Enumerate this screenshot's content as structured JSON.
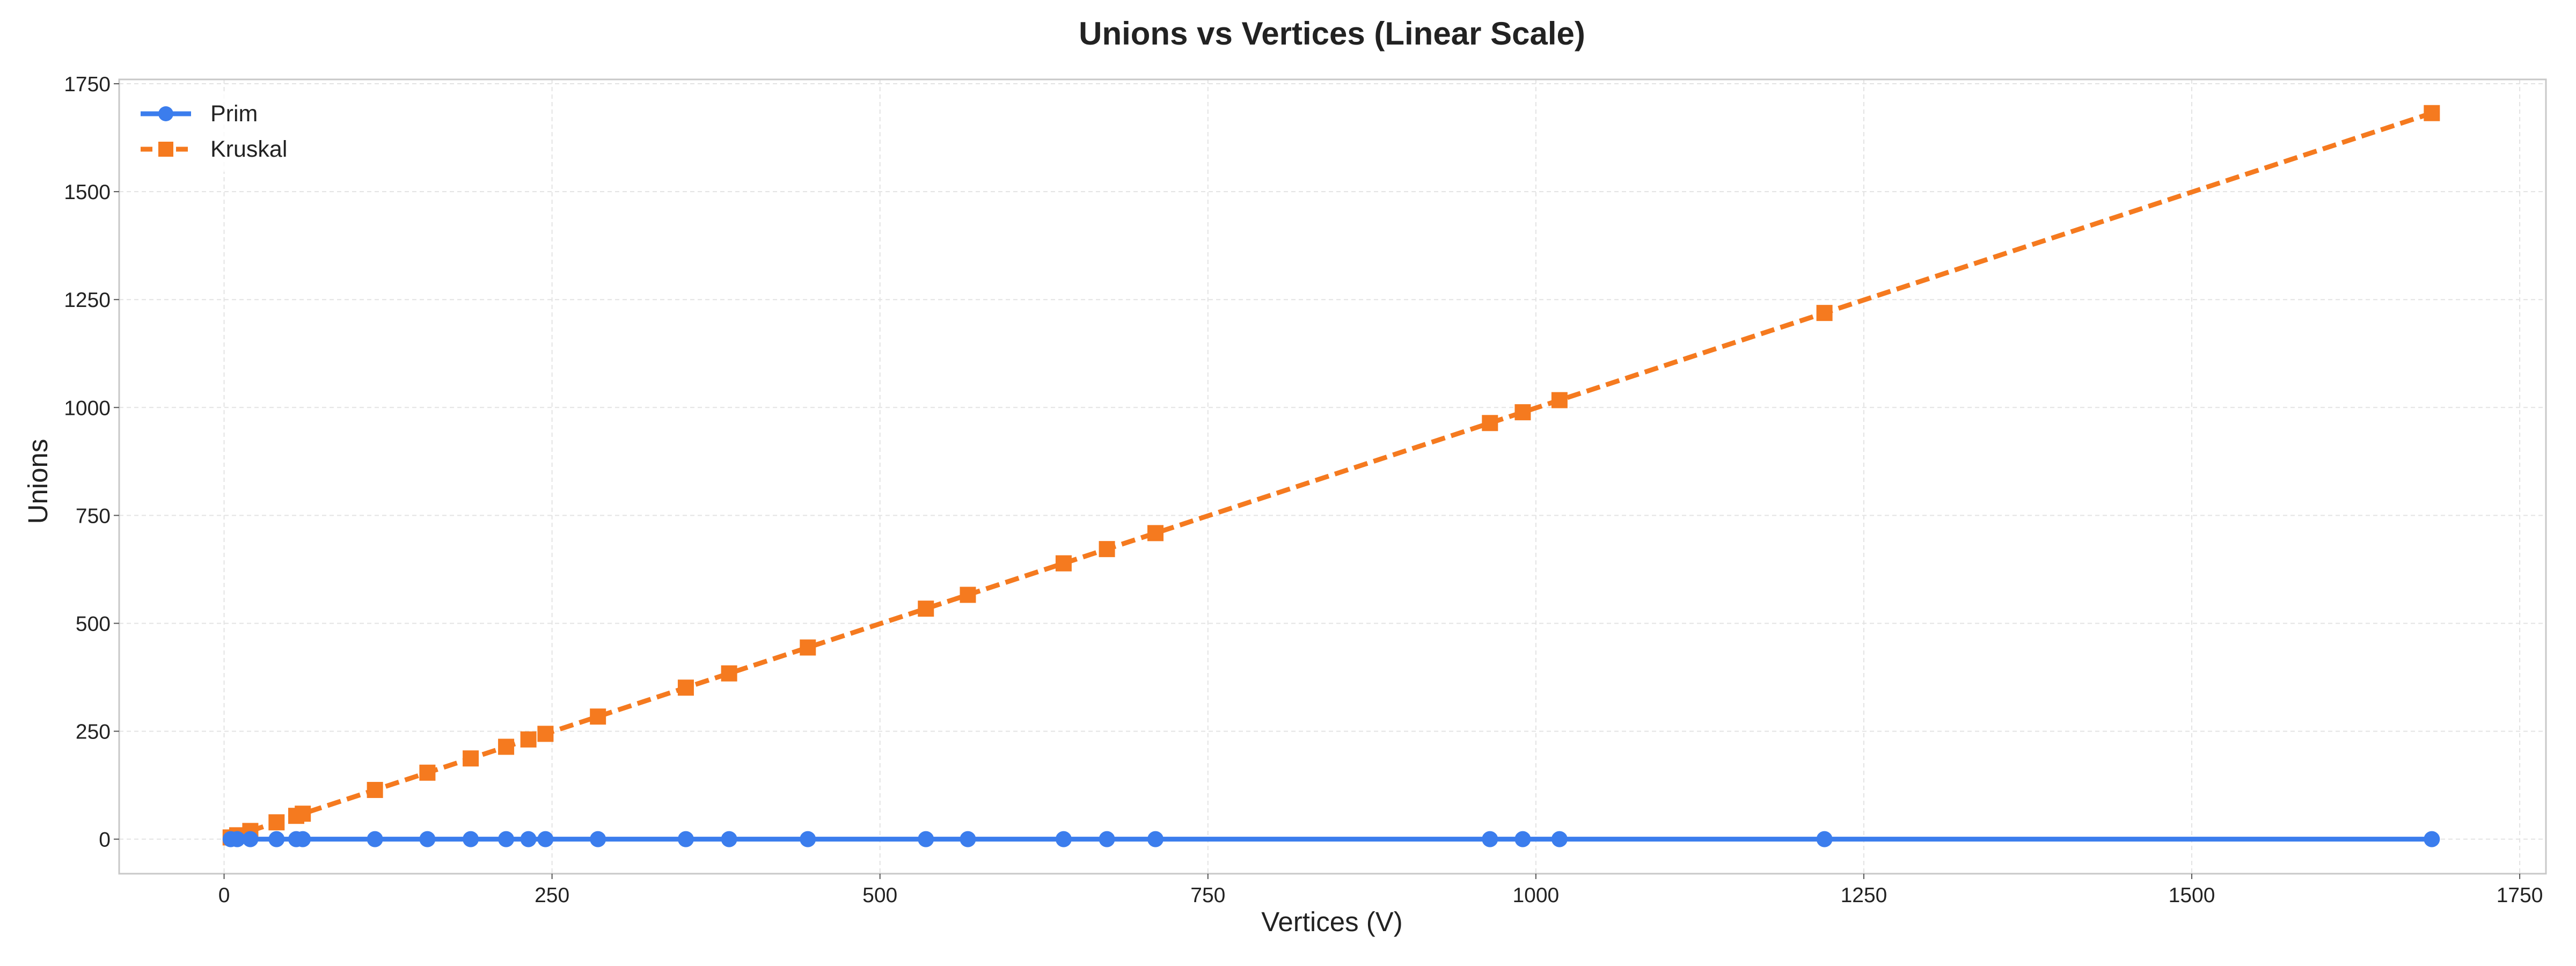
{
  "chart_data": {
    "type": "line",
    "title": "Unions vs Vertices (Linear Scale)",
    "xlabel": "Vertices (V)",
    "ylabel": "Unions",
    "xlim": [
      -80,
      1770
    ],
    "ylim": [
      -80,
      1760
    ],
    "x_ticks": [
      0,
      250,
      500,
      750,
      1000,
      1250,
      1500,
      1750
    ],
    "y_ticks": [
      0,
      250,
      500,
      750,
      1000,
      1250,
      1500,
      1750
    ],
    "grid": true,
    "legend_position": "top-left",
    "x": [
      5,
      10,
      20,
      40,
      55,
      60,
      115,
      155,
      188,
      215,
      232,
      245,
      285,
      352,
      385,
      445,
      535,
      567,
      640,
      673,
      710,
      965,
      990,
      1018,
      1220,
      1683
    ],
    "series": [
      {
        "name": "Prim",
        "color": "#3b7ded",
        "line_style": "solid",
        "marker": "circle",
        "values": [
          0,
          0,
          0,
          0,
          0,
          0,
          0,
          0,
          0,
          0,
          0,
          0,
          0,
          0,
          0,
          0,
          0,
          0,
          0,
          0,
          0,
          0,
          0,
          0,
          0,
          0
        ]
      },
      {
        "name": "Kruskal",
        "color": "#f57a1f",
        "line_style": "dashed",
        "marker": "square",
        "values": [
          4,
          9,
          19,
          39,
          54,
          59,
          114,
          154,
          187,
          214,
          231,
          244,
          284,
          351,
          384,
          444,
          534,
          566,
          639,
          672,
          709,
          964,
          989,
          1017,
          1219,
          1682
        ]
      }
    ]
  }
}
